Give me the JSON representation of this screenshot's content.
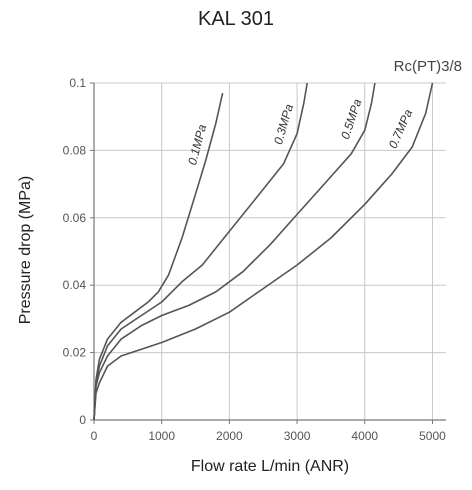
{
  "chart_data": {
    "type": "line",
    "title": "KAL 301",
    "subtitle": "Rc(PT)3/8",
    "xlabel": "Flow rate L/min (ANR)",
    "ylabel": "Pressure drop (MPa)",
    "xlim": [
      0,
      5200
    ],
    "ylim": [
      0,
      0.1
    ],
    "xticks": [
      0,
      1000,
      2000,
      3000,
      4000,
      5000
    ],
    "yticks": [
      0,
      0.02,
      0.04,
      0.06,
      0.08,
      0.1
    ],
    "xtick_labels": [
      "0",
      "1000",
      "2000",
      "3000",
      "4000",
      "5000"
    ],
    "ytick_labels": [
      "0",
      "0.02",
      "0.04",
      "0.06",
      "0.08",
      "0.1"
    ],
    "grid": true,
    "legend": "none",
    "series": [
      {
        "name": "0.1MPa",
        "color": "#555555",
        "x": [
          0,
          30,
          80,
          200,
          400,
          600,
          800,
          950,
          1100,
          1300,
          1500,
          1650,
          1800,
          1900
        ],
        "y": [
          0,
          0.012,
          0.018,
          0.024,
          0.029,
          0.032,
          0.035,
          0.038,
          0.043,
          0.054,
          0.067,
          0.077,
          0.088,
          0.097
        ]
      },
      {
        "name": "0.3MPa",
        "color": "#555555",
        "x": [
          0,
          30,
          80,
          200,
          400,
          700,
          1000,
          1300,
          1600,
          2000,
          2400,
          2800,
          3000,
          3100,
          3150
        ],
        "y": [
          0,
          0.011,
          0.016,
          0.022,
          0.027,
          0.031,
          0.035,
          0.041,
          0.046,
          0.056,
          0.066,
          0.076,
          0.085,
          0.094,
          0.1
        ]
      },
      {
        "name": "0.5MPa",
        "color": "#555555",
        "x": [
          0,
          30,
          80,
          200,
          400,
          700,
          1000,
          1400,
          1800,
          2200,
          2600,
          3000,
          3400,
          3800,
          4000,
          4100,
          4150
        ],
        "y": [
          0,
          0.01,
          0.014,
          0.019,
          0.024,
          0.028,
          0.031,
          0.034,
          0.038,
          0.044,
          0.052,
          0.061,
          0.07,
          0.079,
          0.086,
          0.094,
          0.1
        ]
      },
      {
        "name": "0.7MPa",
        "color": "#555555",
        "x": [
          0,
          30,
          80,
          200,
          400,
          700,
          1000,
          1500,
          2000,
          2500,
          3000,
          3500,
          4000,
          4400,
          4700,
          4900,
          5000
        ],
        "y": [
          0,
          0.008,
          0.011,
          0.016,
          0.019,
          0.021,
          0.023,
          0.027,
          0.032,
          0.039,
          0.046,
          0.054,
          0.064,
          0.073,
          0.081,
          0.091,
          0.1
        ]
      }
    ]
  }
}
